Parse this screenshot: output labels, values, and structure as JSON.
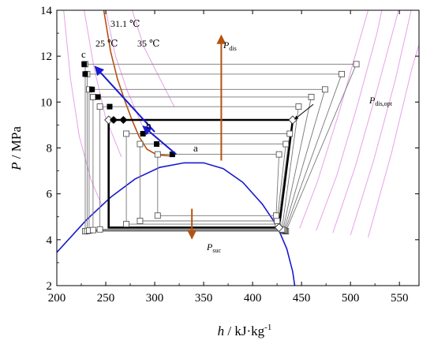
{
  "chart_data": {
    "type": "scatter",
    "title": "",
    "xlabel_main": "h",
    "xlabel_unit": " / kJ·kg",
    "xlabel_exp": "-1",
    "ylabel_main": "P",
    "ylabel_unit": " / MPa",
    "xlim": [
      200,
      570
    ],
    "ylim": [
      2,
      14
    ],
    "xticks": [
      200,
      250,
      300,
      350,
      400,
      450,
      500,
      550
    ],
    "yticks": [
      2,
      4,
      6,
      8,
      10,
      12,
      14
    ],
    "grid": false,
    "dome": {
      "color": "#1a1ad0",
      "points": [
        [
          200,
          3.45
        ],
        [
          230,
          4.85
        ],
        [
          255,
          5.85
        ],
        [
          280,
          6.65
        ],
        [
          305,
          7.15
        ],
        [
          330,
          7.35
        ],
        [
          350,
          7.35
        ],
        [
          370,
          7.1
        ],
        [
          390,
          6.5
        ],
        [
          410,
          5.55
        ],
        [
          425,
          4.6
        ],
        [
          435,
          3.6
        ],
        [
          441,
          2.6
        ],
        [
          443,
          2.0
        ]
      ]
    },
    "isotherms": {
      "color": "#e6a3e6",
      "lines": [
        [
          [
            207,
            14
          ],
          [
            214,
            11
          ],
          [
            223,
            8.5
          ],
          [
            235,
            6.6
          ],
          [
            246,
            5.5
          ]
        ],
        [
          [
            228,
            14
          ],
          [
            238,
            11.5
          ],
          [
            250,
            9.3
          ],
          [
            266,
            7.6
          ]
        ],
        [
          [
            250,
            14
          ],
          [
            260,
            12.0
          ],
          [
            272,
            10.5
          ],
          [
            287,
            9.0
          ]
        ],
        [
          [
            277,
            14
          ],
          [
            289,
            12.4
          ],
          [
            302,
            11.3
          ],
          [
            320,
            9.8
          ]
        ],
        [
          [
            448,
            4.5
          ],
          [
            466,
            6.5
          ],
          [
            488,
            9.5
          ],
          [
            508,
            12.5
          ],
          [
            518,
            14
          ]
        ],
        [
          [
            465,
            4.4
          ],
          [
            486,
            6.8
          ],
          [
            508,
            10.0
          ],
          [
            527,
            13.0
          ],
          [
            532,
            14
          ]
        ],
        [
          [
            482,
            4.3
          ],
          [
            505,
            7.2
          ],
          [
            527,
            10.5
          ],
          [
            546,
            13.5
          ],
          [
            549,
            14
          ]
        ],
        [
          [
            500,
            4.2
          ],
          [
            524,
            7.5
          ],
          [
            546,
            11.0
          ],
          [
            562,
            14
          ]
        ],
        [
          [
            518,
            4.1
          ],
          [
            542,
            7.8
          ],
          [
            563,
            11.5
          ],
          [
            570,
            12.5
          ]
        ]
      ]
    },
    "critical_isotherm": {
      "color": "#b5520f",
      "points": [
        [
          248,
          14
        ],
        [
          255,
          12.2
        ],
        [
          262,
          11.0
        ],
        [
          270,
          10.0
        ],
        [
          277,
          9.2
        ],
        [
          284,
          8.5
        ],
        [
          292,
          7.95
        ],
        [
          302,
          7.7
        ],
        [
          316,
          7.65
        ]
      ]
    },
    "isotherm_labels": [
      "31.1 ℃",
      "25 ℃",
      "35 ℃"
    ],
    "cycles": [
      {
        "hi": 11.65,
        "a": 229,
        "b": 506,
        "c": 434,
        "lo": 4.37
      },
      {
        "hi": 11.22,
        "a": 231,
        "b": 491,
        "c": 433,
        "lo": 4.38
      },
      {
        "hi": 10.55,
        "a": 233,
        "b": 474,
        "c": 432,
        "lo": 4.4
      },
      {
        "hi": 10.22,
        "a": 237,
        "b": 460,
        "c": 431,
        "lo": 4.42
      },
      {
        "hi": 9.8,
        "a": 244,
        "b": 447,
        "c": 430,
        "lo": 4.45
      },
      {
        "hi": 9.22,
        "a": 253,
        "b": 441,
        "c": 427,
        "lo": 4.53,
        "bold": true
      },
      {
        "hi": 8.62,
        "a": 271,
        "b": 438,
        "c": 426,
        "lo": 4.68
      },
      {
        "hi": 8.17,
        "a": 285,
        "b": 434,
        "c": 425,
        "lo": 4.82
      },
      {
        "hi": 7.72,
        "a": 303,
        "b": 427,
        "c": 424,
        "lo": 5.05
      }
    ],
    "filled_square_points": [
      [
        228,
        11.65
      ],
      [
        229,
        11.22
      ],
      [
        236,
        10.55
      ],
      [
        242,
        10.22
      ],
      [
        254,
        9.8
      ],
      [
        288,
        8.62
      ],
      [
        302,
        8.17
      ],
      [
        318,
        7.72
      ]
    ],
    "filled_diamond_points": [
      [
        258,
        9.22
      ],
      [
        268,
        9.22
      ]
    ],
    "open_diamond_points": [
      [
        253,
        9.22
      ],
      [
        441,
        9.22
      ],
      [
        427,
        4.53
      ]
    ],
    "arrows": {
      "blue_color": "#1a1ad0",
      "blue": [
        {
          "from": [
            322,
            7.72
          ],
          "to": [
            288,
            8.95
          ],
          "label": "a"
        },
        {
          "from": [
            300,
            8.7
          ],
          "to": [
            239,
            11.55
          ],
          "label": "b"
        }
      ],
      "point_label_c": "c",
      "brown_color": "#b5520f",
      "brown_up": {
        "from": [
          368,
          7.45
        ],
        "to": [
          368,
          12.9
        ],
        "label_main": "P",
        "label_sub": "dis"
      },
      "brown_down": {
        "from": [
          338,
          5.35
        ],
        "to": [
          338,
          4.05
        ],
        "label_main": "P",
        "label_sub": "suc"
      },
      "black_pointer": {
        "from": [
          462,
          9.9
        ],
        "to": [
          443,
          9.25
        ],
        "label_main": "P",
        "label_sub": "dis,opt"
      }
    }
  }
}
